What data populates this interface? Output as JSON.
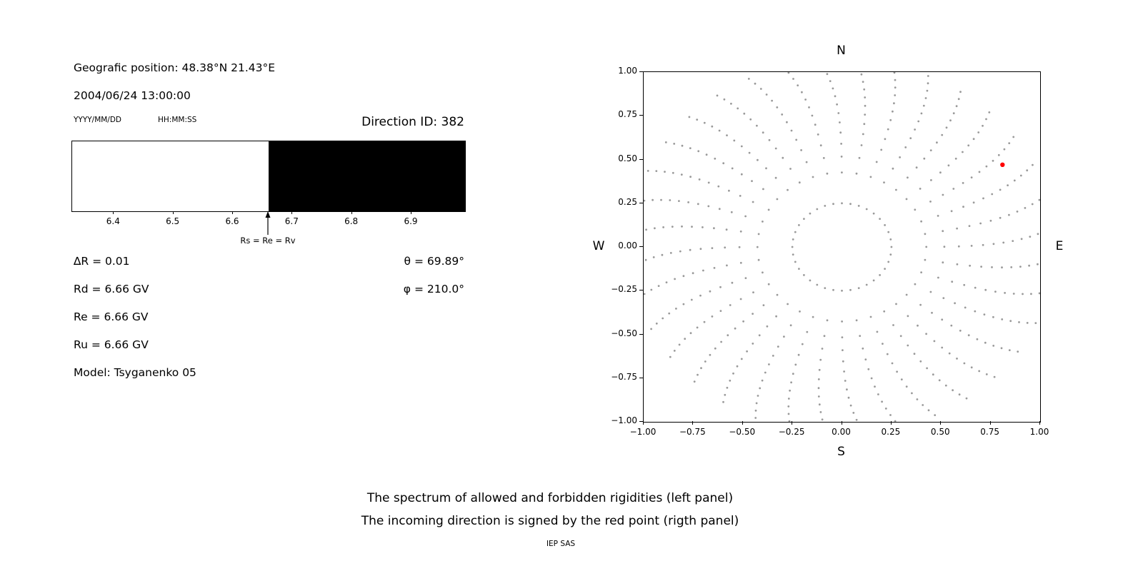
{
  "header": {
    "geo_position": "Geografic position: 48.38°N 21.43°E",
    "datetime": "2004/06/24 13:00:00",
    "date_format_hint": "YYYY/MM/DD",
    "time_format_hint": "HH:MM:SS",
    "direction_id": "Direction ID: 382"
  },
  "parameters": {
    "delta_r": "∆R = 0.01",
    "rd": "Rd = 6.66 GV",
    "re": "Re = 6.66 GV",
    "ru": "Ru = 6.66 GV",
    "model": "Model: Tsyganenko 05",
    "theta": "θ = 69.89°",
    "phi": "φ = 210.0°"
  },
  "caption": {
    "line1": "The spectrum of allowed and forbidden rigidities (left panel)",
    "line2": "The incoming direction is signed by the red point (rigth panel)",
    "credit": "IEP SAS"
  },
  "chart_data": [
    {
      "type": "area",
      "name": "rigidity-spectrum",
      "x_range": [
        6.33,
        6.99
      ],
      "x_tick_values": [
        6.4,
        6.5,
        6.6,
        6.7,
        6.8,
        6.9
      ],
      "x_ticks": [
        "6.4",
        "6.5",
        "6.6",
        "6.7",
        "6.8",
        "6.9"
      ],
      "regions": [
        {
          "label": "allowed",
          "from": 6.33,
          "to": 6.66,
          "color": "#ffffff"
        },
        {
          "label": "forbidden",
          "from": 6.66,
          "to": 6.99,
          "color": "#000000"
        }
      ],
      "annotation": {
        "text": "Rs = Re = Rv",
        "x": 6.66
      }
    },
    {
      "type": "scatter",
      "name": "asymptotic-directions",
      "xlim": [
        -1,
        1
      ],
      "ylim": [
        -1,
        1
      ],
      "x_tick_values": [
        -1,
        -0.75,
        -0.5,
        -0.25,
        0,
        0.25,
        0.5,
        0.75,
        1
      ],
      "x_ticks": [
        "−1.00",
        "−0.75",
        "−0.50",
        "−0.25",
        "0.00",
        "0.25",
        "0.50",
        "0.75",
        "1.00"
      ],
      "y_tick_values": [
        1,
        0.75,
        0.5,
        0.25,
        0,
        -0.25,
        -0.5,
        -0.75,
        -1
      ],
      "y_ticks": [
        "1.00",
        "0.75",
        "0.50",
        "0.25",
        "0.00",
        "−0.25",
        "−0.50",
        "−0.75",
        "−1.00"
      ],
      "compass": {
        "top": "N",
        "bottom": "S",
        "left": "W",
        "right": "E"
      },
      "dots": {
        "color": "#9a9a9a",
        "spoke_count": 36,
        "inner_ring_radius": 0.25,
        "outer_radius": 1.07,
        "points_per_spoke": 13,
        "radial_exponent": 0.6,
        "angular_drift_deg": 6,
        "description": "36 radial spokes of gray dots every 10 degrees, inner ring at r=0.25, dots bunching toward the outer rim near r=1.0"
      },
      "red_point": {
        "x": 0.81,
        "y": 0.47,
        "color": "#ff0000",
        "label": "incoming direction"
      }
    }
  ]
}
